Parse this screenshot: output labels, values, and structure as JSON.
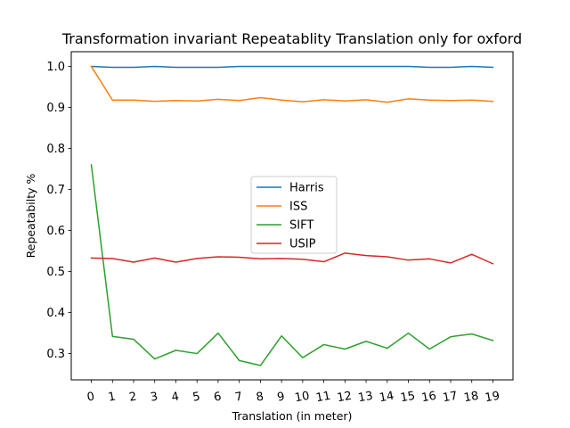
{
  "chart_data": {
    "type": "line",
    "title": "Transformation invariant Repeatablity Translation only for oxford",
    "xlabel": "Translation (in meter)",
    "ylabel": "Repeatabilty %",
    "x": [
      0,
      1,
      2,
      3,
      4,
      5,
      6,
      7,
      8,
      9,
      10,
      11,
      12,
      13,
      14,
      15,
      16,
      17,
      18,
      19
    ],
    "x_tick_labels": [
      "0",
      "1",
      "2",
      "3",
      "4",
      "5",
      "6",
      "7",
      "8",
      "9",
      "10",
      "11",
      "12",
      "13",
      "14",
      "15",
      "16",
      "17",
      "18",
      "19"
    ],
    "xlim": [
      -0.95,
      19.95
    ],
    "ylim": [
      0.236,
      1.036
    ],
    "y_ticks": [
      0.3,
      0.4,
      0.5,
      0.6,
      0.7,
      0.8,
      0.9,
      1.0
    ],
    "y_tick_labels": [
      "0.3",
      "0.4",
      "0.5",
      "0.6",
      "0.7",
      "0.8",
      "0.9",
      "1.0"
    ],
    "grid": false,
    "legend_placement": "center",
    "series": [
      {
        "name": "Harris",
        "color": "#1f77b4",
        "values": [
          1.0,
          0.998,
          0.998,
          1.0,
          0.998,
          0.998,
          0.998,
          1.0,
          1.0,
          1.0,
          1.0,
          1.0,
          1.0,
          1.0,
          1.0,
          1.0,
          0.998,
          0.998,
          1.0,
          0.998
        ]
      },
      {
        "name": "ISS",
        "color": "#ff7f0e",
        "values": [
          1.0,
          0.918,
          0.918,
          0.915,
          0.917,
          0.916,
          0.92,
          0.917,
          0.924,
          0.918,
          0.914,
          0.919,
          0.916,
          0.919,
          0.913,
          0.921,
          0.918,
          0.917,
          0.918,
          0.915
        ]
      },
      {
        "name": "SIFT",
        "color": "#2ca02c",
        "values": [
          0.76,
          0.342,
          0.335,
          0.287,
          0.308,
          0.3,
          0.35,
          0.283,
          0.271,
          0.343,
          0.29,
          0.322,
          0.311,
          0.33,
          0.313,
          0.35,
          0.311,
          0.341,
          0.348,
          0.332
        ]
      },
      {
        "name": "USIP",
        "color": "#d62728",
        "values": [
          0.533,
          0.532,
          0.523,
          0.533,
          0.523,
          0.532,
          0.536,
          0.535,
          0.531,
          0.532,
          0.53,
          0.524,
          0.545,
          0.539,
          0.536,
          0.528,
          0.531,
          0.521,
          0.542,
          0.519
        ]
      }
    ]
  }
}
